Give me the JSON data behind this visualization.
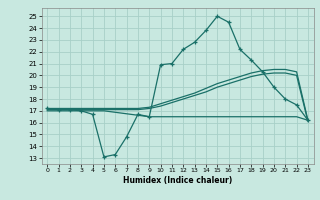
{
  "background_color": "#c8e8e0",
  "grid_color": "#a8d0c8",
  "line_color": "#1a7068",
  "xlabel": "Humidex (Indice chaleur)",
  "xlim": [
    -0.5,
    23.5
  ],
  "ylim": [
    12.5,
    25.7
  ],
  "yticks": [
    13,
    14,
    15,
    16,
    17,
    18,
    19,
    20,
    21,
    22,
    23,
    24,
    25
  ],
  "xticks": [
    0,
    1,
    2,
    3,
    4,
    5,
    6,
    7,
    8,
    9,
    10,
    11,
    12,
    13,
    14,
    15,
    16,
    17,
    18,
    19,
    20,
    21,
    22,
    23
  ],
  "c1_x": [
    0,
    1,
    2,
    3,
    4,
    5,
    6,
    7,
    8,
    9,
    10,
    11,
    12,
    13,
    14,
    15,
    16,
    17,
    18,
    19,
    20,
    21,
    22,
    23
  ],
  "c1_y": [
    17.2,
    17.1,
    17.1,
    17.0,
    16.7,
    13.1,
    13.3,
    14.8,
    16.7,
    16.5,
    20.9,
    21.0,
    22.2,
    22.8,
    23.8,
    25.0,
    24.5,
    22.2,
    21.3,
    20.3,
    19.0,
    18.0,
    17.5,
    16.2
  ],
  "c2_x": [
    0,
    1,
    2,
    3,
    4,
    5,
    6,
    7,
    8,
    9,
    10,
    11,
    12,
    13,
    14,
    15,
    16,
    17,
    18,
    19,
    20,
    21,
    22,
    23
  ],
  "c2_y": [
    17.2,
    17.2,
    17.2,
    17.2,
    17.2,
    17.2,
    17.2,
    17.2,
    17.2,
    17.3,
    17.6,
    17.9,
    18.2,
    18.5,
    18.9,
    19.3,
    19.6,
    19.9,
    20.2,
    20.4,
    20.5,
    20.5,
    20.3,
    16.2
  ],
  "c3_x": [
    0,
    1,
    2,
    3,
    4,
    5,
    6,
    7,
    8,
    9,
    10,
    11,
    12,
    13,
    14,
    15,
    16,
    17,
    18,
    19,
    20,
    21,
    22,
    23
  ],
  "c3_y": [
    17.1,
    17.1,
    17.1,
    17.1,
    17.1,
    17.1,
    17.1,
    17.1,
    17.1,
    17.2,
    17.4,
    17.7,
    18.0,
    18.3,
    18.6,
    19.0,
    19.3,
    19.6,
    19.9,
    20.1,
    20.2,
    20.2,
    20.0,
    16.1
  ],
  "c4_x": [
    0,
    1,
    2,
    3,
    4,
    5,
    9,
    10,
    11,
    12,
    13,
    14,
    15,
    16,
    17,
    18,
    19,
    20,
    21,
    22,
    23
  ],
  "c4_y": [
    17.0,
    17.0,
    17.0,
    17.0,
    17.0,
    17.0,
    16.5,
    16.5,
    16.5,
    16.5,
    16.5,
    16.5,
    16.5,
    16.5,
    16.5,
    16.5,
    16.5,
    16.5,
    16.5,
    16.5,
    16.2
  ]
}
